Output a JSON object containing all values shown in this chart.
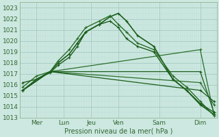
{
  "xlabel": "Pression niveau de la mer( hPa )",
  "bg_color": "#cce8e0",
  "grid_color_major": "#a8ccc4",
  "grid_color_minor": "#bcddd6",
  "ylim": [
    1013,
    1023.5
  ],
  "xlim": [
    -0.1,
    7.1
  ],
  "day_labels": [
    "Mer",
    "Lun",
    "Jeu",
    "Ven",
    "Sam",
    "Dim"
  ],
  "day_positions": [
    0.5,
    1.5,
    2.5,
    3.5,
    5.0,
    6.5
  ],
  "yticks": [
    1013,
    1014,
    1015,
    1016,
    1017,
    1018,
    1019,
    1020,
    1021,
    1022,
    1023
  ],
  "series": [
    {
      "x": [
        0.0,
        0.5,
        1.0,
        1.3,
        1.7,
        2.0,
        2.3,
        2.8,
        3.2,
        3.5,
        3.8,
        4.2,
        4.8,
        5.5,
        6.0,
        6.5,
        7.0
      ],
      "y": [
        1015.5,
        1016.5,
        1017.2,
        1018.0,
        1018.8,
        1019.8,
        1020.8,
        1021.5,
        1022.2,
        1022.5,
        1021.8,
        1020.5,
        1019.5,
        1016.5,
        1015.5,
        1014.2,
        1013.3
      ],
      "color": "#1a5c1a",
      "lw": 1.2,
      "marker": "+",
      "ms": 3.5
    },
    {
      "x": [
        0.0,
        0.5,
        1.0,
        1.3,
        1.7,
        2.0,
        2.3,
        2.8,
        3.2,
        3.5,
        3.8,
        4.2,
        4.8,
        5.5,
        6.0,
        6.5,
        7.0
      ],
      "y": [
        1015.8,
        1016.8,
        1017.2,
        1018.2,
        1019.2,
        1020.2,
        1021.2,
        1021.8,
        1022.3,
        1021.5,
        1020.8,
        1019.8,
        1019.2,
        1016.8,
        1015.8,
        1014.5,
        1013.2
      ],
      "color": "#2a6e2a",
      "lw": 1.0,
      "marker": "+",
      "ms": 3.0
    },
    {
      "x": [
        0.0,
        0.5,
        1.0,
        1.3,
        1.7,
        2.0,
        2.3,
        2.8,
        3.2,
        3.5,
        3.8,
        4.2,
        4.8,
        5.5,
        6.0,
        6.5,
        7.0
      ],
      "y": [
        1016.2,
        1016.5,
        1017.1,
        1017.8,
        1018.5,
        1019.5,
        1020.8,
        1021.5,
        1021.8,
        1021.2,
        1020.2,
        1019.5,
        1019.0,
        1016.5,
        1015.5,
        1014.3,
        1013.5
      ],
      "color": "#1a5c1a",
      "lw": 1.0,
      "marker": "+",
      "ms": 3.0
    },
    {
      "x": [
        0.0,
        1.0,
        6.5,
        7.0
      ],
      "y": [
        1015.5,
        1017.2,
        1019.2,
        1013.3
      ],
      "color": "#2a6e2a",
      "lw": 0.9,
      "marker": "+",
      "ms": 3.0
    },
    {
      "x": [
        0.0,
        1.0,
        6.5,
        7.0
      ],
      "y": [
        1015.5,
        1017.2,
        1017.2,
        1013.5
      ],
      "color": "#1a5c1a",
      "lw": 0.9,
      "marker": "+",
      "ms": 3.0
    },
    {
      "x": [
        0.0,
        1.0,
        6.5,
        7.0
      ],
      "y": [
        1015.5,
        1017.2,
        1016.2,
        1014.2
      ],
      "color": "#2a6e2a",
      "lw": 0.9,
      "marker": "+",
      "ms": 3.0
    },
    {
      "x": [
        0.0,
        1.0,
        6.5,
        7.0
      ],
      "y": [
        1015.5,
        1017.2,
        1015.5,
        1014.5
      ],
      "color": "#1a5c1a",
      "lw": 0.9,
      "marker": "+",
      "ms": 3.0
    }
  ]
}
